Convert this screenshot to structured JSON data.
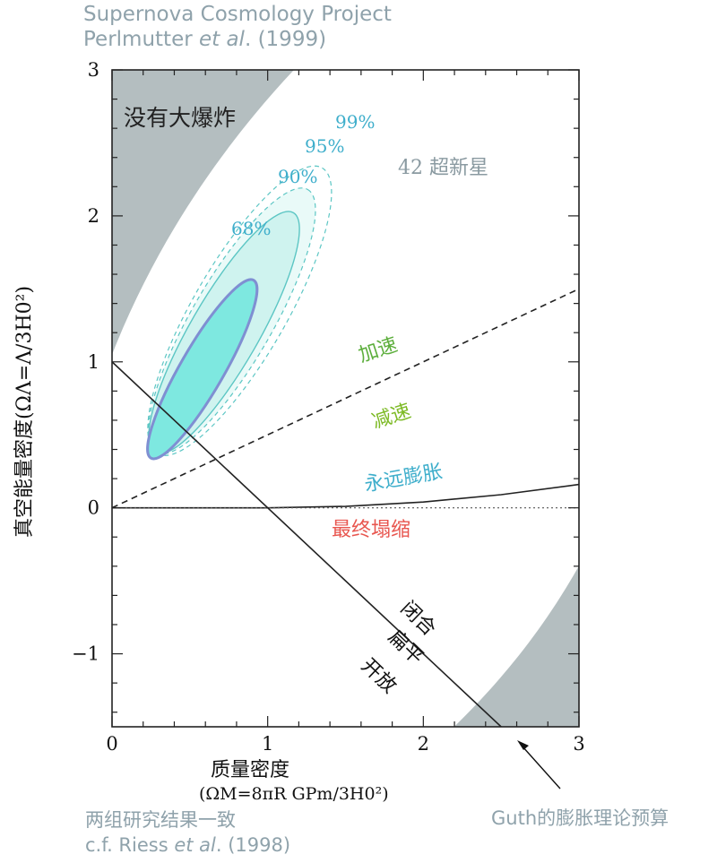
{
  "header": {
    "line1": "Supernova Cosmology Project",
    "line2_a": "Perlmutter ",
    "line2_b": "et al",
    "line2_c": ". (1999)"
  },
  "footer": {
    "left_line1": "两组研究结果一致",
    "left_line2_a": "c.f. Riess ",
    "left_line2_b": "et al",
    "left_line2_c": ". (1998)",
    "right": "Guth的膨胀理论预算"
  },
  "colors": {
    "gray_region": "#b4bec0",
    "contour_fill": "#cff3ef",
    "contour_inner": "#7ee8e0",
    "contour_line": "#5cc6c4",
    "contour_68": "#7f8fd2",
    "label_contour": "#3eaecb",
    "accelerate": "#5cae3c",
    "decelerate": "#7dba25",
    "expand": "#3eaecb",
    "collapse": "#e8564f"
  },
  "chart_data": {
    "type": "line",
    "title": "",
    "xlabel_line1": "质量密度",
    "xlabel_line2": "(ΩM=8πR GPm/3H0²)",
    "ylabel": "真空能量密度(ΩΛ=Λ/3H0²)",
    "xlim": [
      0,
      3
    ],
    "ylim": [
      -1.5,
      3
    ],
    "xticks": [
      "0",
      "1",
      "2",
      "3"
    ],
    "yticks": [
      "−1",
      "0",
      "1",
      "2",
      "3"
    ],
    "regions": [
      {
        "name": "没有大爆炸",
        "label": "没有大爆炸"
      },
      {
        "name": "no-big-bang-lower-right",
        "label": ""
      }
    ],
    "contours": [
      {
        "level": "68%",
        "center": [
          0.58,
          0.95
        ],
        "major": 1.32,
        "minor": 0.14,
        "angle_deg": 60
      },
      {
        "level": "90%",
        "center": [
          0.72,
          1.2
        ],
        "major": 1.78,
        "minor": 0.22,
        "angle_deg": 60
      },
      {
        "level": "95%",
        "center": [
          0.77,
          1.28
        ],
        "major": 1.95,
        "minor": 0.26,
        "angle_deg": 60
      },
      {
        "level": "99%",
        "center": [
          0.82,
          1.35
        ],
        "major": 2.12,
        "minor": 0.3,
        "angle_deg": 60
      }
    ],
    "series": [
      {
        "name": "加速/减速",
        "style": "dashed",
        "x": [
          0,
          3
        ],
        "y": [
          0,
          1.5
        ]
      },
      {
        "name": "闭合/扁平/开放",
        "style": "solid",
        "x": [
          0,
          2.5
        ],
        "y": [
          1,
          -1.5
        ]
      },
      {
        "name": "永远膨胀/最终塌缩",
        "style": "solid",
        "x": [
          0,
          1.0,
          1.5,
          2.0,
          2.5,
          3.0
        ],
        "y": [
          0,
          0,
          0.01,
          0.04,
          0.09,
          0.16
        ]
      },
      {
        "name": "",
        "style": "dotted",
        "x": [
          0,
          3
        ],
        "y": [
          0,
          0
        ]
      }
    ],
    "annotations": {
      "supernovae": "42 超新星",
      "c68": "68%",
      "c90": "90%",
      "c95": "95%",
      "c99": "99%",
      "accelerate": "加速",
      "decelerate": "减速",
      "expand_forever": "永远膨胀",
      "recollapse": "最终塌缩",
      "closed": "闭合",
      "flat": "扁平",
      "open": "开放"
    }
  }
}
